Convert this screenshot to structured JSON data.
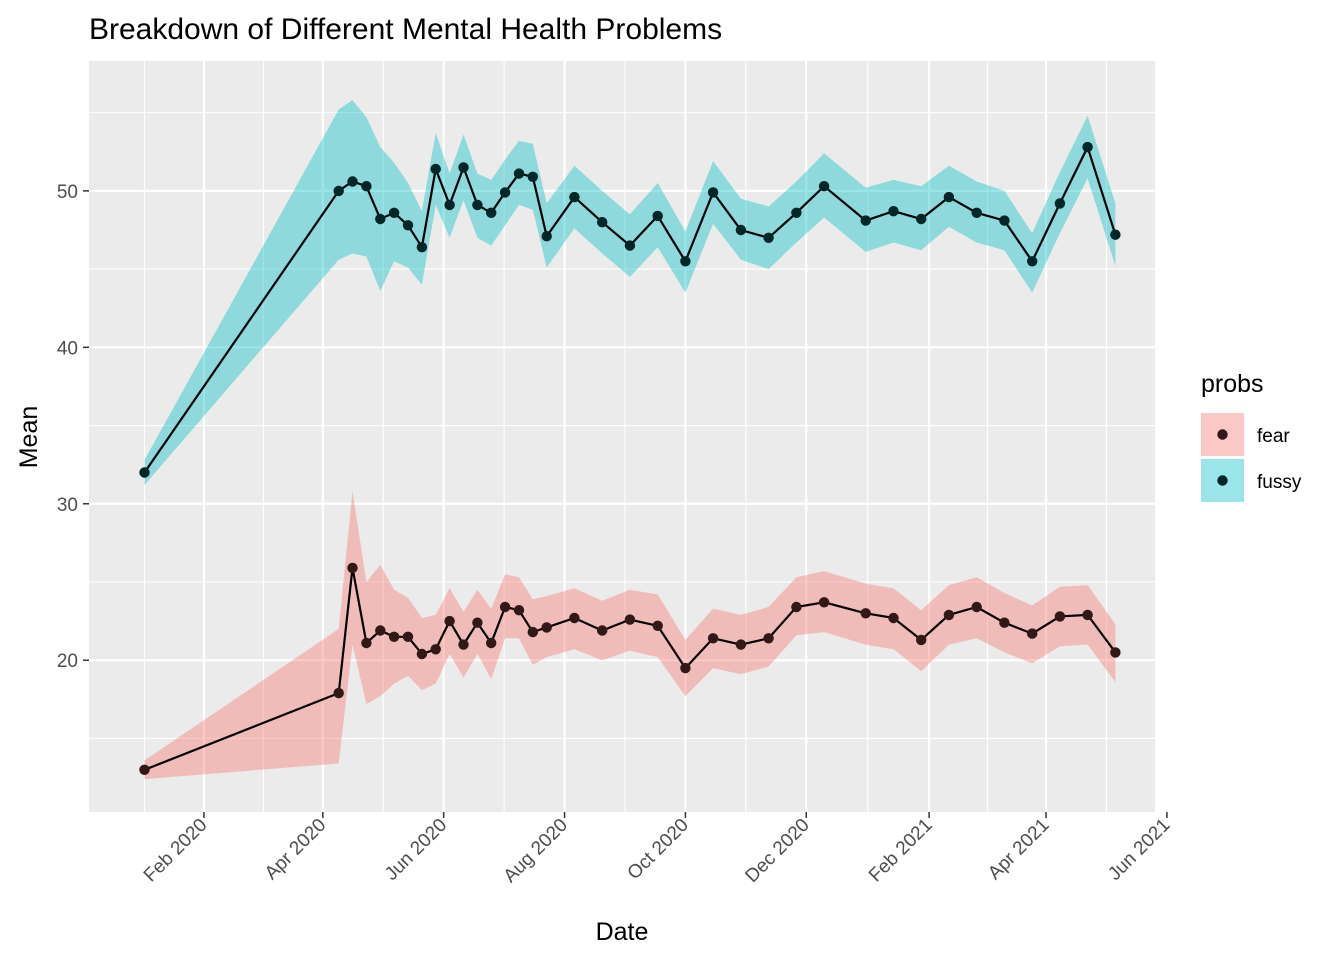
{
  "chart_data": {
    "type": "line",
    "title": "Breakdown of Different Mental Health Problems",
    "xlabel": "Date",
    "ylabel": "Mean",
    "xlim": [
      "2019-12-05",
      "2021-05-26"
    ],
    "ylim": [
      10.3,
      58.3
    ],
    "x_ticks": [
      "2020-02-01",
      "2020-04-01",
      "2020-06-01",
      "2020-08-01",
      "2020-10-01",
      "2020-12-01",
      "2021-02-01",
      "2021-04-01",
      "2021-06-01"
    ],
    "x_tick_labels": [
      "Feb 2020",
      "Apr 2020",
      "Jun 2020",
      "Aug 2020",
      "Oct 2020",
      "Dec 2020",
      "Feb 2021",
      "Apr 2021",
      "Jun 2021"
    ],
    "y_ticks": [
      20,
      30,
      40,
      50
    ],
    "y_tick_labels": [
      "20",
      "30",
      "40",
      "50"
    ],
    "grid": true,
    "legend": {
      "title": "probs",
      "position": "right"
    },
    "x": [
      "2020-01-02",
      "2020-04-09",
      "2020-04-16",
      "2020-04-23",
      "2020-04-30",
      "2020-05-07",
      "2020-05-14",
      "2020-05-21",
      "2020-05-28",
      "2020-06-04",
      "2020-06-11",
      "2020-06-18",
      "2020-06-25",
      "2020-07-02",
      "2020-07-09",
      "2020-07-16",
      "2020-07-23",
      "2020-08-06",
      "2020-08-20",
      "2020-09-03",
      "2020-09-17",
      "2020-10-01",
      "2020-10-15",
      "2020-10-29",
      "2020-11-12",
      "2020-11-26",
      "2020-12-10",
      "2020-12-31",
      "2021-01-14",
      "2021-01-28",
      "2021-02-11",
      "2021-02-25",
      "2021-03-11",
      "2021-03-25",
      "2021-04-08",
      "2021-04-22",
      "2021-05-06"
    ],
    "series": [
      {
        "name": "fear",
        "color": "#f8766d",
        "values": [
          13.0,
          17.9,
          25.9,
          21.1,
          21.9,
          21.5,
          21.5,
          20.4,
          20.7,
          22.5,
          21.0,
          22.4,
          21.1,
          23.4,
          23.2,
          21.8,
          22.1,
          22.7,
          21.9,
          22.6,
          22.2,
          19.5,
          21.4,
          21.0,
          21.4,
          23.4,
          23.7,
          23.0,
          22.7,
          21.3,
          22.9,
          23.4,
          22.4,
          21.7,
          22.8,
          22.9,
          20.5
        ],
        "lower": [
          12.4,
          13.4,
          21.0,
          17.2,
          17.7,
          18.5,
          19.0,
          18.1,
          18.5,
          20.4,
          18.9,
          20.4,
          18.8,
          21.4,
          21.4,
          19.7,
          20.2,
          20.7,
          20.0,
          20.6,
          20.2,
          17.7,
          19.5,
          19.1,
          19.6,
          21.6,
          21.8,
          21.0,
          20.7,
          19.3,
          21.0,
          21.4,
          20.5,
          19.8,
          20.9,
          21.0,
          18.6
        ],
        "upper": [
          13.6,
          22.0,
          30.8,
          25.0,
          26.1,
          24.5,
          24.0,
          22.7,
          22.9,
          24.6,
          23.1,
          24.5,
          23.3,
          25.5,
          25.3,
          23.9,
          24.1,
          24.6,
          23.8,
          24.5,
          24.2,
          21.3,
          23.3,
          22.9,
          23.4,
          25.3,
          25.7,
          24.9,
          24.6,
          23.2,
          24.8,
          25.3,
          24.3,
          23.5,
          24.7,
          24.8,
          22.3
        ]
      },
      {
        "name": "fussy",
        "color": "#00bfc4",
        "values": [
          32.0,
          50.0,
          50.6,
          50.3,
          48.2,
          48.6,
          47.8,
          46.4,
          51.4,
          49.1,
          51.5,
          49.1,
          48.6,
          49.9,
          51.1,
          50.9,
          47.1,
          49.6,
          48.0,
          46.5,
          48.4,
          45.5,
          49.9,
          47.5,
          47.0,
          48.6,
          50.3,
          48.1,
          48.7,
          48.2,
          49.6,
          48.6,
          48.1,
          45.5,
          49.2,
          52.8,
          47.2
        ],
        "lower": [
          31.2,
          45.6,
          46.0,
          45.8,
          43.6,
          45.5,
          45.1,
          44.0,
          49.1,
          47.0,
          49.4,
          47.0,
          46.5,
          47.8,
          49.1,
          48.8,
          45.1,
          47.6,
          46.0,
          44.5,
          46.4,
          43.5,
          47.9,
          45.6,
          45.0,
          46.7,
          48.3,
          46.1,
          46.7,
          46.2,
          47.7,
          46.7,
          46.2,
          43.5,
          47.3,
          50.8,
          45.2
        ],
        "upper": [
          32.8,
          55.2,
          55.8,
          54.7,
          52.8,
          51.8,
          50.5,
          48.7,
          53.7,
          51.1,
          53.6,
          51.1,
          50.7,
          52.0,
          53.2,
          53.0,
          49.2,
          51.6,
          50.0,
          48.5,
          50.5,
          47.4,
          51.9,
          49.5,
          49.0,
          50.6,
          52.4,
          50.2,
          50.7,
          50.3,
          51.6,
          50.6,
          50.0,
          47.3,
          51.2,
          54.8,
          49.2
        ]
      }
    ]
  }
}
